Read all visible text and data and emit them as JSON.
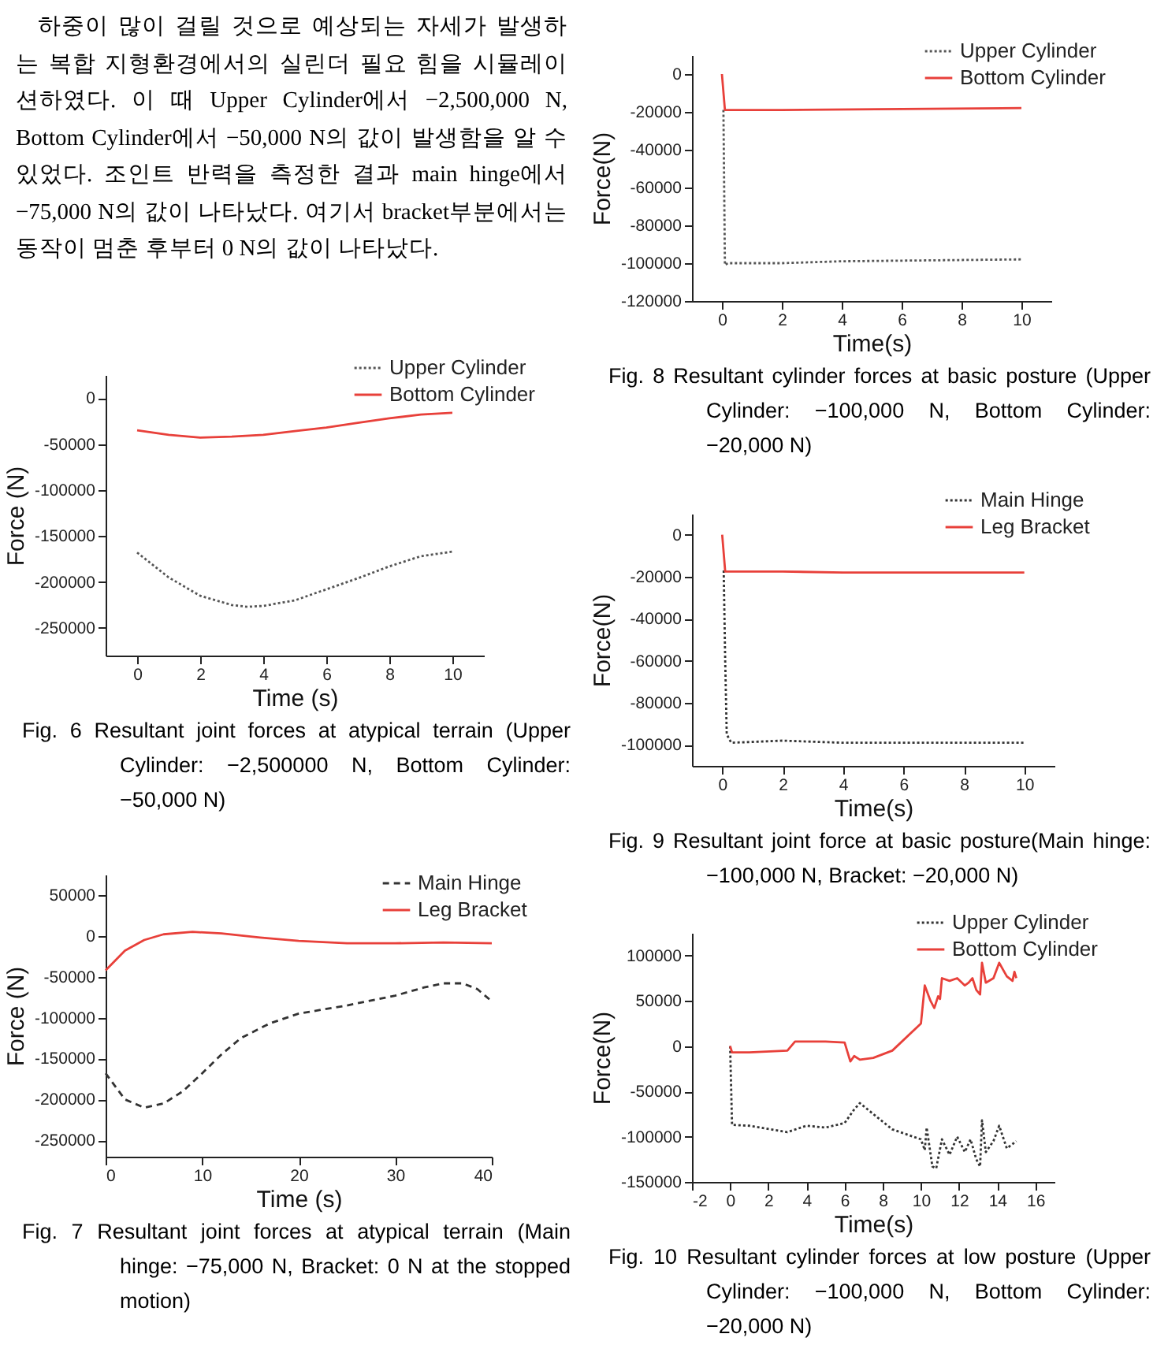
{
  "chart_data": [
    {
      "type": "other",
      "annotations": [
        "하중이 많이 걸릴 것으로 예상되는 자세가 발생하는 복합 지형환경에서의 실린더 필요 힘을 시뮬레이션하였다. 이 때 Upper Cylinder에서 −2,500,000 N, Bottom Cylinder에서 −50,000 N의 값이 발생함을 알 수 있었다. 조인트 반력을 측정한 결과 main hinge에서 −75,000 N의 값이 나타났다. 여기서 bracket부분에서는 동작이 멈춘 후부터 0 N의 값이 나타났다."
      ]
    },
    {
      "type": "line",
      "xlabel": "Time (s)",
      "ylabel": "Force (N)",
      "xlim": [
        -1,
        11
      ],
      "xticks": [
        0,
        2,
        4,
        6,
        8,
        10
      ],
      "ylim": [
        -280000,
        25000
      ],
      "yticks": [
        0,
        -50000,
        -100000,
        -150000,
        -200000,
        -250000
      ],
      "legend": "top right",
      "annotations": [
        "Fig. 6 Resultant joint forces at atypical terrain (Upper Cylinder: −2,500000 N, Bottom Cylinder: −50,000 N)"
      ],
      "series": [
        {
          "name": "Upper Cylinder",
          "color": "#555555",
          "line_style": "dotted",
          "x": [
            0,
            1,
            2,
            3,
            3.5,
            4,
            5,
            6,
            7,
            8,
            9,
            10
          ],
          "values": [
            -168000,
            -195000,
            -215000,
            -225000,
            -227000,
            -226000,
            -220000,
            -208000,
            -196000,
            -183000,
            -172000,
            -167000
          ]
        },
        {
          "name": "Bottom Cylinder",
          "color": "#e8403a",
          "line_style": "solid",
          "x": [
            0,
            1,
            2,
            3,
            4,
            5,
            6,
            7,
            8,
            9,
            10
          ],
          "values": [
            -35000,
            -40000,
            -43000,
            -42000,
            -40000,
            -36000,
            -32000,
            -27000,
            -22000,
            -18000,
            -16000
          ]
        }
      ]
    },
    {
      "type": "line",
      "xlabel": "Time (s)",
      "ylabel": "Force (N)",
      "xlim": [
        0,
        40
      ],
      "xticks": [
        0,
        10,
        20,
        30,
        40
      ],
      "ylim": [
        -270000,
        75000
      ],
      "yticks": [
        50000,
        0,
        -50000,
        -100000,
        -150000,
        -200000,
        -250000
      ],
      "legend": "top right",
      "annotations": [
        "Fig. 7 Resultant joint forces at atypical terrain (Main hinge: −75,000 N, Bracket: 0 N at the stopped motion)"
      ],
      "series": [
        {
          "name": "Main Hinge",
          "color": "#333333",
          "line_style": "dashed",
          "x": [
            0,
            2,
            4,
            6,
            8,
            10,
            12,
            14,
            17,
            20,
            25,
            30,
            33,
            35,
            37,
            38.5,
            40
          ],
          "values": [
            -168000,
            -200000,
            -210000,
            -205000,
            -190000,
            -168000,
            -145000,
            -125000,
            -107000,
            -95000,
            -85000,
            -73000,
            -63000,
            -58000,
            -58000,
            -65000,
            -80000
          ]
        },
        {
          "name": "Leg Bracket",
          "color": "#e8403a",
          "line_style": "solid",
          "x": [
            0,
            2,
            4,
            6,
            9,
            12,
            16,
            20,
            25,
            30,
            35,
            40
          ],
          "values": [
            -42000,
            -18000,
            -5000,
            2000,
            5000,
            3000,
            -2000,
            -6000,
            -9000,
            -9000,
            -8000,
            -9000
          ]
        }
      ]
    },
    {
      "type": "line",
      "xlabel": "Time(s)",
      "ylabel": "Force(N)",
      "xlim": [
        -1,
        11
      ],
      "xticks": [
        0,
        2,
        4,
        6,
        8,
        10
      ],
      "ylim": [
        -120000,
        10000
      ],
      "yticks": [
        0,
        -20000,
        -40000,
        -60000,
        -80000,
        -100000,
        -120000
      ],
      "legend": "top right",
      "annotations": [
        "Fig. 8 Resultant cylinder forces at basic posture (Upper Cylinder: −100,000 N, Bottom Cylinder: −20,000 N)"
      ],
      "series": [
        {
          "name": "Upper Cylinder",
          "color": "#555555",
          "line_style": "dotted",
          "x": [
            0.05,
            0.1,
            0.2,
            2,
            4,
            10
          ],
          "values": [
            -19000,
            -101000,
            -100000,
            -100000,
            -99000,
            -98000
          ]
        },
        {
          "name": "Bottom Cylinder",
          "color": "#e8403a",
          "line_style": "solid",
          "x": [
            0,
            0.1,
            2,
            10
          ],
          "values": [
            0,
            -19000,
            -19000,
            -18000
          ]
        }
      ]
    },
    {
      "type": "line",
      "xlabel": "Time(s)",
      "ylabel": "Force(N)",
      "xlim": [
        -1,
        11
      ],
      "xticks": [
        0,
        2,
        4,
        6,
        8,
        10
      ],
      "ylim": [
        -110000,
        10000
      ],
      "yticks": [
        0,
        -20000,
        -40000,
        -60000,
        -80000,
        -100000
      ],
      "legend": "top right",
      "annotations": [
        "Fig. 9 Resultant joint force at basic posture(Main hinge: −100,000 N, Bracket: −20,000 N)"
      ],
      "series": [
        {
          "name": "Main Hinge",
          "color": "#333333",
          "line_style": "dotted",
          "x": [
            0.05,
            0.1,
            0.15,
            0.3,
            2,
            4,
            10
          ],
          "values": [
            -17000,
            -60000,
            -95000,
            -99000,
            -98000,
            -99000,
            -99000
          ]
        },
        {
          "name": "Leg Bracket",
          "color": "#e8403a",
          "line_style": "solid",
          "x": [
            0,
            0.1,
            2,
            4,
            10
          ],
          "values": [
            0,
            -17500,
            -17500,
            -18000,
            -18000
          ]
        }
      ]
    },
    {
      "type": "line",
      "xlabel": "Time(s)",
      "ylabel": "Force(N)",
      "xlim": [
        -2,
        17
      ],
      "xticks": [
        -2,
        0,
        2,
        4,
        6,
        8,
        10,
        12,
        14,
        16
      ],
      "ylim": [
        -150000,
        125000
      ],
      "yticks": [
        100000,
        50000,
        0,
        -50000,
        -100000,
        -150000
      ],
      "legend": "top right",
      "annotations": [
        "Fig. 10 Resultant cylinder forces at low posture (Upper Cylinder: −100,000 N, Bottom Cylinder: −20,000 N)"
      ],
      "series": [
        {
          "name": "Upper Cylinder",
          "color": "#333333",
          "line_style": "dotted",
          "x": [
            0,
            0.1,
            1,
            3,
            4,
            5,
            6,
            6.5,
            6.8,
            7.5,
            8.5,
            10,
            10.2,
            10.3,
            10.6,
            10.8,
            11.1,
            11.5,
            11.9,
            12.3,
            12.6,
            12.9,
            13.1,
            13.2,
            13.4,
            13.8,
            14.1,
            14.5,
            15
          ],
          "values": [
            0,
            -87000,
            -88000,
            -95000,
            -88000,
            -90000,
            -85000,
            -70000,
            -63000,
            -75000,
            -92000,
            -103000,
            -115000,
            -90000,
            -133000,
            -135000,
            -103000,
            -120000,
            -100000,
            -117000,
            -103000,
            -125000,
            -133000,
            -82000,
            -117000,
            -105000,
            -88000,
            -113000,
            -105000
          ]
        },
        {
          "name": "Bottom Cylinder",
          "color": "#e8403a",
          "line_style": "solid",
          "x": [
            0,
            0.1,
            1,
            3,
            3.4,
            5,
            6,
            6.3,
            6.5,
            6.8,
            7.5,
            8.5,
            10,
            10.2,
            10.5,
            10.7,
            10.9,
            11,
            11.1,
            11.5,
            11.9,
            12.3,
            12.5,
            12.7,
            12.9,
            13.1,
            13.2,
            13.4,
            13.8,
            14.1,
            14.5,
            14.8,
            14.9,
            15
          ],
          "values": [
            0,
            -7000,
            -7000,
            -5000,
            5000,
            5000,
            4000,
            -17000,
            -11000,
            -15000,
            -13000,
            -5000,
            25000,
            67000,
            50000,
            42000,
            55000,
            52000,
            75000,
            72000,
            75000,
            67000,
            70000,
            75000,
            62000,
            57000,
            92000,
            70000,
            75000,
            92000,
            77000,
            72000,
            82000,
            75000
          ]
        }
      ]
    }
  ]
}
